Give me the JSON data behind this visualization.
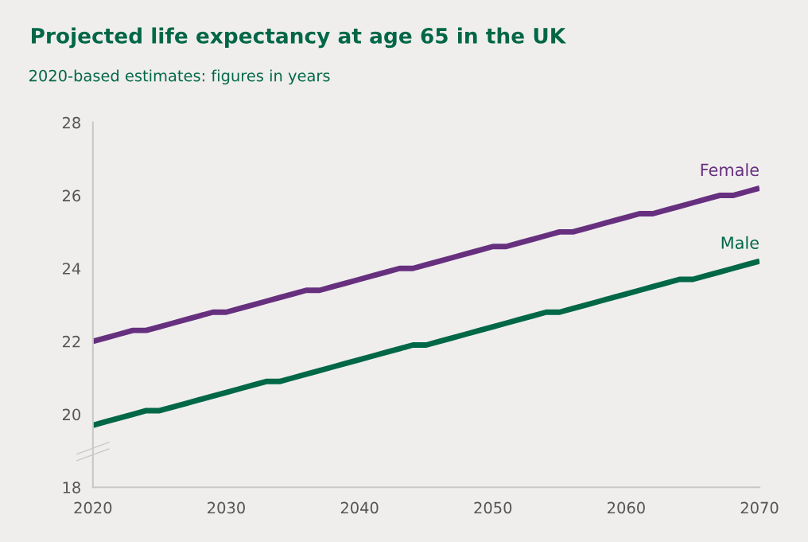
{
  "chart_data": {
    "type": "line",
    "title": "Projected life expectancy at age 65 in the UK",
    "subtitle": "2020-based estimates: figures in years",
    "x": [
      2020,
      2021,
      2022,
      2023,
      2024,
      2025,
      2026,
      2027,
      2028,
      2029,
      2030,
      2031,
      2032,
      2033,
      2034,
      2035,
      2036,
      2037,
      2038,
      2039,
      2040,
      2041,
      2042,
      2043,
      2044,
      2045,
      2046,
      2047,
      2048,
      2049,
      2050,
      2051,
      2052,
      2053,
      2054,
      2055,
      2056,
      2057,
      2058,
      2059,
      2060,
      2061,
      2062,
      2063,
      2064,
      2065,
      2066,
      2067,
      2068,
      2069,
      2070
    ],
    "series": [
      {
        "name": "Female",
        "color": "#67307f",
        "values": [
          22.0,
          22.1,
          22.2,
          22.3,
          22.3,
          22.4,
          22.5,
          22.6,
          22.7,
          22.8,
          22.8,
          22.9,
          23.0,
          23.1,
          23.2,
          23.3,
          23.4,
          23.4,
          23.5,
          23.6,
          23.7,
          23.8,
          23.9,
          24.0,
          24.0,
          24.1,
          24.2,
          24.3,
          24.4,
          24.5,
          24.6,
          24.6,
          24.7,
          24.8,
          24.9,
          25.0,
          25.0,
          25.1,
          25.2,
          25.3,
          25.4,
          25.5,
          25.5,
          25.6,
          25.7,
          25.8,
          25.9,
          26.0,
          26.0,
          26.1,
          26.2
        ]
      },
      {
        "name": "Male",
        "color": "#006747",
        "values": [
          19.7,
          19.8,
          19.9,
          20.0,
          20.1,
          20.1,
          20.2,
          20.3,
          20.4,
          20.5,
          20.6,
          20.7,
          20.8,
          20.9,
          20.9,
          21.0,
          21.1,
          21.2,
          21.3,
          21.4,
          21.5,
          21.6,
          21.7,
          21.8,
          21.9,
          21.9,
          22.0,
          22.1,
          22.2,
          22.3,
          22.4,
          22.5,
          22.6,
          22.7,
          22.8,
          22.8,
          22.9,
          23.0,
          23.1,
          23.2,
          23.3,
          23.4,
          23.5,
          23.6,
          23.7,
          23.7,
          23.8,
          23.9,
          24.0,
          24.1,
          24.2
        ]
      }
    ],
    "xlim": [
      2020,
      2070
    ],
    "xticks": [
      2020,
      2030,
      2040,
      2050,
      2060,
      2070
    ],
    "ylim": [
      18,
      28
    ],
    "yticks": [
      18,
      20,
      22,
      24,
      26,
      28
    ],
    "grid": false,
    "legend": false,
    "marker": "none",
    "line_style": "solid"
  }
}
